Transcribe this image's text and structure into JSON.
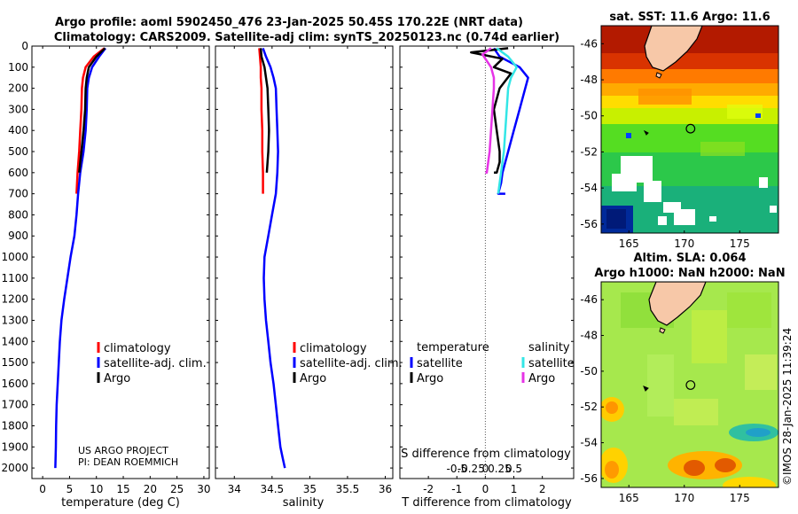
{
  "figure": {
    "title_line1": "Argo profile: aoml 5902450_476 23-Jan-2025 50.45S 170.22E (NRT data)",
    "title_line2": "Climatology: CARS2009. Satellite-adj clim: synTS_20250123.nc (0.74d earlier)",
    "credit": "US ARGO PROJECT",
    "pi": "PI: DEAN ROEMMICH",
    "copyright": "©IMOS 28-Jan-2025 11:39:24",
    "colors": {
      "climatology": "#ff0000",
      "satellite_adj": "#0000ff",
      "argo": "#000000",
      "sat_temperature": "#0000ff",
      "sat_salinity": "#33e6e6",
      "argo_salinity": "#e633e6",
      "land": "#f7c8a8"
    }
  },
  "chart_data": [
    {
      "id": "temperature",
      "type": "line",
      "title": "",
      "xlabel": "temperature (deg C)",
      "ylabel": "",
      "xlim": [
        -2,
        31
      ],
      "ylim": [
        2050,
        0
      ],
      "xticks": [
        0,
        5,
        10,
        15,
        20,
        25,
        30
      ],
      "yticks": [
        0,
        100,
        200,
        300,
        400,
        500,
        600,
        700,
        800,
        900,
        1000,
        1100,
        1200,
        1300,
        1400,
        1500,
        1600,
        1700,
        1800,
        1900,
        2000
      ],
      "series": [
        {
          "name": "climatology",
          "color": "#ff0000",
          "x": [
            11.5,
            9.5,
            8.0,
            7.5,
            7.3,
            7.2,
            7.0,
            6.8,
            6.5,
            6.3
          ],
          "y": [
            10,
            50,
            100,
            150,
            200,
            300,
            400,
            500,
            600,
            700
          ]
        },
        {
          "name": "satellite-adj. clim.",
          "color": "#0000ff",
          "x": [
            11.7,
            10.5,
            9.2,
            8.6,
            8.3,
            8.2,
            8.0,
            7.6,
            7.0,
            6.6,
            6.3,
            5.9,
            5.2,
            4.6,
            4.0,
            3.5,
            3.2,
            3.0,
            2.8,
            2.6,
            2.5,
            2.45,
            2.4,
            2.35
          ],
          "y": [
            10,
            50,
            100,
            150,
            200,
            300,
            400,
            500,
            600,
            700,
            800,
            900,
            1000,
            1100,
            1200,
            1300,
            1400,
            1500,
            1600,
            1700,
            1800,
            1900,
            1950,
            2000
          ]
        },
        {
          "name": "Argo",
          "color": "#000000",
          "x": [
            11.6,
            10.0,
            8.6,
            8.2,
            8.0,
            7.9,
            7.6,
            7.2,
            6.8
          ],
          "y": [
            10,
            50,
            100,
            150,
            200,
            300,
            400,
            500,
            600
          ]
        }
      ],
      "legend": [
        "climatology",
        "satellite-adj. clim.",
        "Argo"
      ]
    },
    {
      "id": "salinity",
      "type": "line",
      "xlabel": "salinity",
      "xlim": [
        33.75,
        36.1
      ],
      "ylim": [
        2050,
        0
      ],
      "xticks": [
        34,
        34.5,
        35,
        35.5,
        36
      ],
      "series": [
        {
          "name": "climatology",
          "color": "#ff0000",
          "x": [
            34.33,
            34.34,
            34.35,
            34.35,
            34.36,
            34.36,
            34.37,
            34.37,
            34.38,
            34.38
          ],
          "y": [
            10,
            50,
            100,
            150,
            200,
            300,
            400,
            500,
            600,
            700
          ]
        },
        {
          "name": "satellite-adj. clim.",
          "color": "#0000ff",
          "x": [
            34.38,
            34.42,
            34.48,
            34.52,
            34.55,
            34.56,
            34.57,
            34.58,
            34.57,
            34.55,
            34.5,
            34.45,
            34.4,
            34.39,
            34.4,
            34.42,
            34.45,
            34.48,
            34.52,
            34.55,
            34.58,
            34.61,
            34.64,
            34.67
          ],
          "y": [
            10,
            50,
            100,
            150,
            200,
            300,
            400,
            500,
            600,
            700,
            800,
            900,
            1000,
            1100,
            1200,
            1300,
            1400,
            1500,
            1600,
            1700,
            1800,
            1900,
            1950,
            2000
          ]
        },
        {
          "name": "Argo",
          "color": "#000000",
          "x": [
            34.35,
            34.36,
            34.4,
            34.42,
            34.44,
            34.45,
            34.46,
            34.45,
            34.43
          ],
          "y": [
            10,
            50,
            100,
            150,
            200,
            300,
            400,
            500,
            600
          ]
        }
      ],
      "legend": [
        "climatology",
        "satellite-adj. clim.",
        "Argo"
      ]
    },
    {
      "id": "difference",
      "type": "line",
      "xlabel": "T difference from climatology",
      "xlabel_top": "S difference from climatology",
      "xlim": [
        -3,
        3.1
      ],
      "ylim": [
        2050,
        0
      ],
      "xticks": [
        -2,
        -1,
        0,
        1,
        2
      ],
      "xticks_salinity": [
        -0.5,
        -0.25,
        0,
        0.25,
        0.5
      ],
      "series": [
        {
          "name": "satellite (temperature)",
          "color": "#0000ff",
          "x": [
            0.3,
            0.5,
            1.2,
            1.5,
            1.4,
            1.2,
            1.0,
            0.8,
            0.7,
            0.6,
            0.55,
            0.45,
            0.7
          ],
          "y": [
            10,
            50,
            100,
            150,
            200,
            300,
            400,
            500,
            550,
            600,
            650,
            700,
            700
          ]
        },
        {
          "name": "Argo (temperature)",
          "color": "#000000",
          "x": [
            0.8,
            -0.5,
            0.6,
            0.3,
            0.9,
            0.5,
            0.3,
            0.4,
            0.5,
            0.5,
            0.4,
            0.3
          ],
          "y": [
            10,
            30,
            60,
            100,
            130,
            200,
            300,
            400,
            500,
            550,
            600,
            600
          ]
        },
        {
          "name": "satellite (salinity)",
          "color": "#33e6e6",
          "x": [
            0.4,
            0.8,
            1.1,
            0.9,
            0.8,
            0.75,
            0.7,
            0.65,
            0.6,
            0.55,
            0.5,
            0.45
          ],
          "y": [
            10,
            50,
            100,
            150,
            200,
            300,
            400,
            500,
            550,
            600,
            650,
            700
          ]
        },
        {
          "name": "Argo (salinity)",
          "color": "#e633e6",
          "x": [
            0.2,
            -0.1,
            0.2,
            0.3,
            0.3,
            0.25,
            0.2,
            0.15,
            0.1,
            0.05,
            0.0
          ],
          "y": [
            10,
            40,
            100,
            150,
            200,
            300,
            400,
            500,
            550,
            600,
            600
          ]
        }
      ],
      "legend_headers": [
        "temperature",
        "salinity"
      ],
      "legend_temperature": [
        "satellite",
        "Argo"
      ],
      "legend_salinity": [
        "satellite",
        "Argo"
      ]
    },
    {
      "id": "map_sst",
      "type": "heatmap",
      "title": "sat. SST: 11.6 Argo: 11.6",
      "xlim": [
        162.5,
        178.5
      ],
      "ylim": [
        -56.5,
        -45
      ],
      "xticks": [
        165,
        170,
        175
      ],
      "yticks": [
        -46,
        -48,
        -50,
        -52,
        -54,
        -56
      ],
      "marker": {
        "lon": 170.22,
        "lat": -50.45
      }
    },
    {
      "id": "map_sla",
      "type": "heatmap",
      "title_line1": "Altim. SLA: 0.064",
      "title_line2": "Argo h1000: NaN h2000: NaN",
      "xlim": [
        162.5,
        178.5
      ],
      "ylim": [
        -56.5,
        -45
      ],
      "xticks": [
        165,
        170,
        175
      ],
      "yticks": [
        -46,
        -48,
        -50,
        -52,
        -54,
        -56
      ],
      "marker": {
        "lon": 170.22,
        "lat": -50.45
      }
    }
  ]
}
